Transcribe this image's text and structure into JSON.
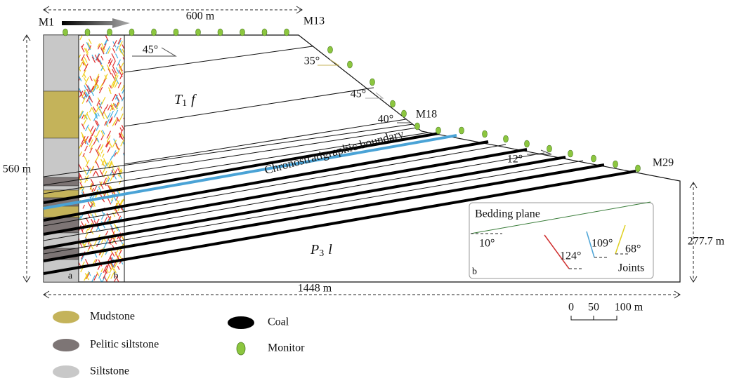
{
  "dimensions": {
    "top_span": "600 m",
    "height_left": "560 m",
    "height_right": "277.7 m",
    "total_length": "1448 m"
  },
  "monitor_points": [
    "M1",
    "M13",
    "M18",
    "M29"
  ],
  "slope_angles": [
    "45°",
    "35°",
    "45°",
    "40°",
    "12°"
  ],
  "formations": {
    "upper": {
      "symbol": "T",
      "subscript": "1",
      "suffix": "f"
    },
    "lower": {
      "symbol": "P",
      "subscript": "3",
      "suffix": "l"
    }
  },
  "boundary_label": "Chronostratigraphic boundary",
  "column_labels": [
    "a",
    "b"
  ],
  "inset": {
    "title": "Bedding plane",
    "bedding_angle": "10°",
    "joint_angles": [
      "124°",
      "109°",
      "68°"
    ],
    "joints_label": "Joints",
    "panel_label": "b"
  },
  "legend": [
    "Mudstone",
    "Pelitic siltstone",
    "Siltstone",
    "Coal",
    "Monitor"
  ],
  "scale_bar": [
    "0",
    "50",
    "100 m"
  ]
}
